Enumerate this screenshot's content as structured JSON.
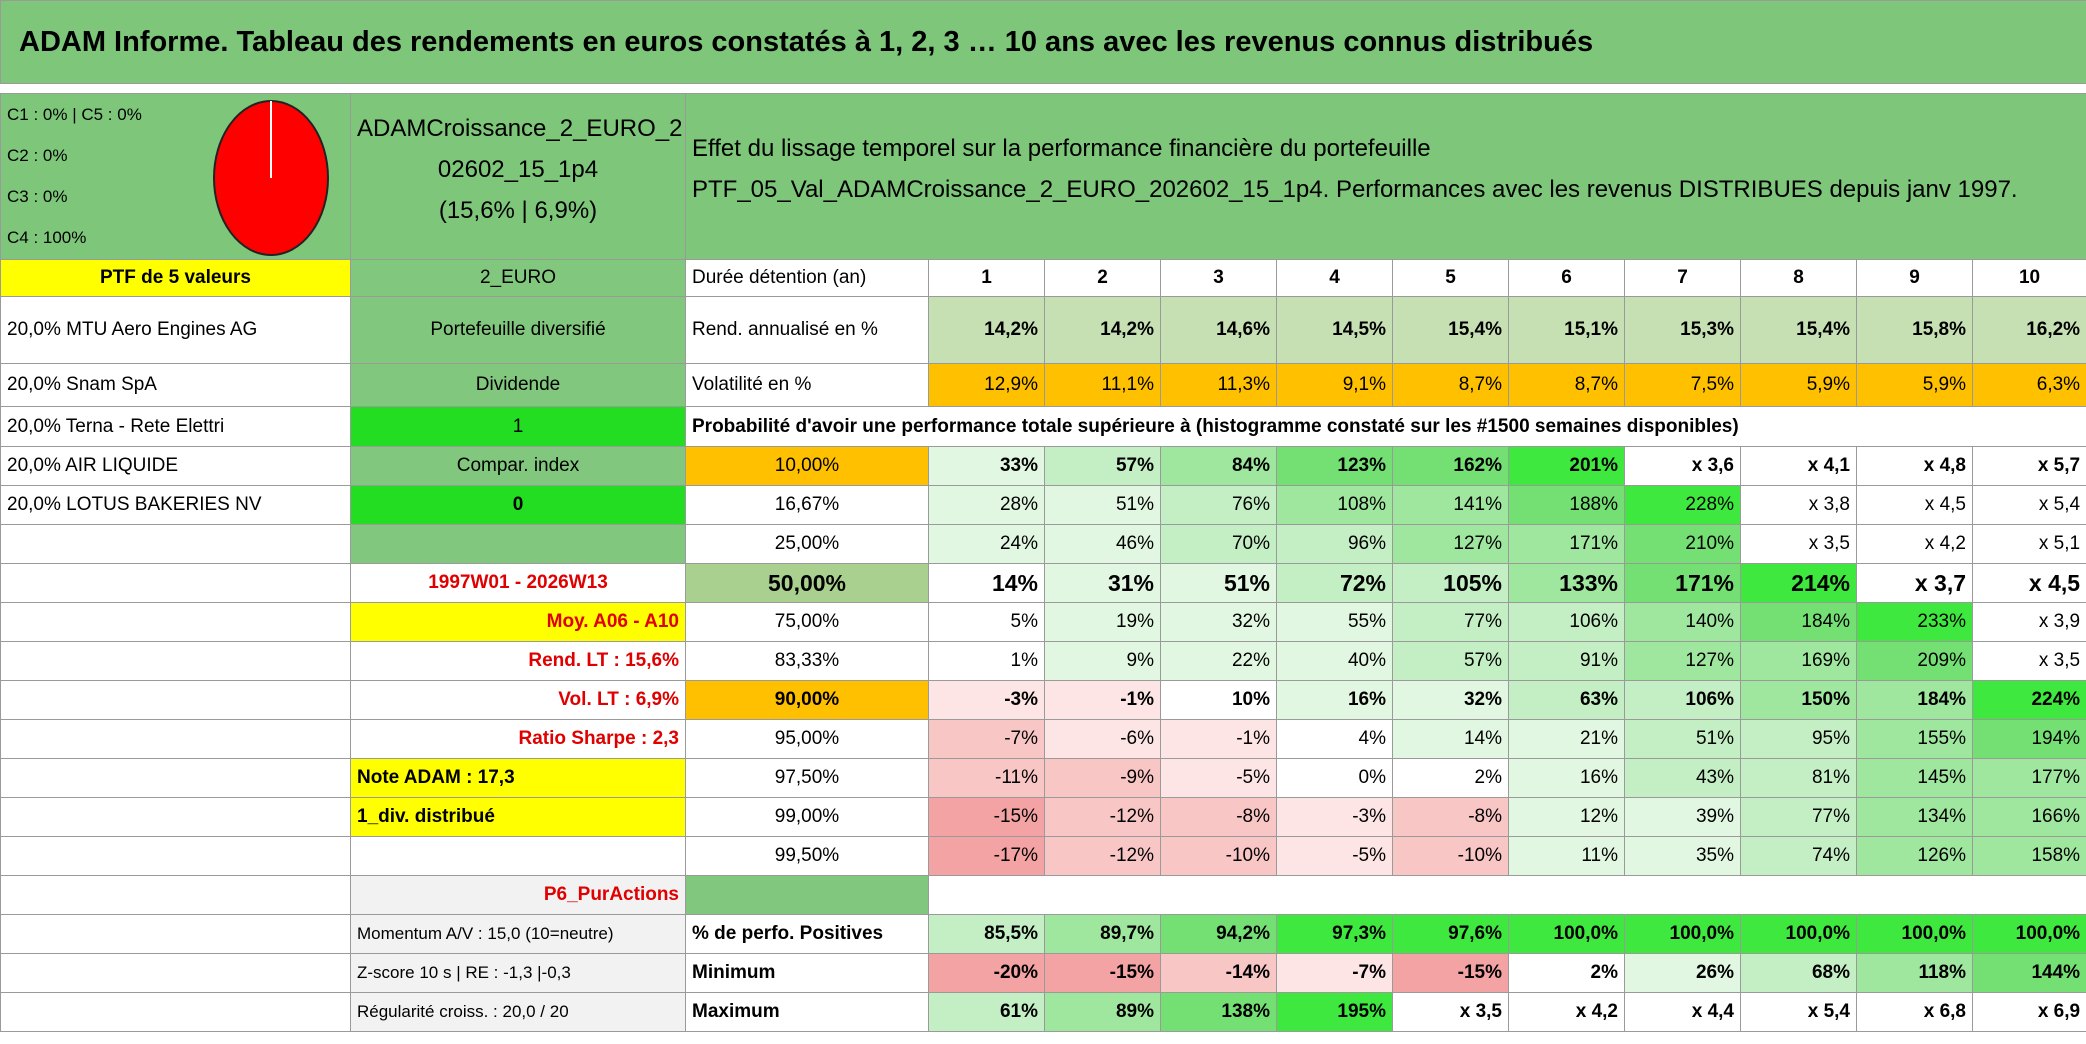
{
  "title": "ADAM Informe. Tableau des rendements en euros constatés à 1, 2, 3 … 10 ans avec les revenus connus distribués",
  "header": {
    "weights": [
      "C1 : 0% | C5 : 0%",
      "C2 : 0%",
      "C3 : 0%",
      "C4 : 100%"
    ],
    "fund": [
      "ADAMCroissance_2_EURO_2",
      "02602_15_1p4",
      "(15,6% | 6,9%)"
    ],
    "description": [
      "Effet du lissage temporel sur la performance financière du portefeuille",
      "PTF_05_Val_ADAMCroissance_2_EURO_202602_15_1p4. Performances avec les revenus DISTRIBUES depuis janv 1997."
    ]
  },
  "rows": [
    [
      "PTF de 5 valeurs",
      "2_EURO",
      "Durée détention (an)",
      "1",
      "2",
      "3",
      "4",
      "5",
      "6",
      "7",
      "8",
      "9",
      "10"
    ],
    [
      "20,0% MTU Aero Engines AG",
      "Portefeuille diversifié",
      "Rend. annualisé en %",
      "14,2%",
      "14,2%",
      "14,6%",
      "14,5%",
      "15,4%",
      "15,1%",
      "15,3%",
      "15,4%",
      "15,8%",
      "16,2%"
    ],
    [
      "20,0% Snam SpA",
      "Dividende",
      "Volatilité en %",
      "12,9%",
      "11,1%",
      "11,3%",
      "9,1%",
      "8,7%",
      "8,7%",
      "7,5%",
      "5,9%",
      "5,9%",
      "6,3%"
    ],
    [
      "20,0% Terna - Rete Elettri",
      "1",
      "Probabilité d'avoir une performance totale supérieure à (histogramme constaté sur les #1500 semaines disponibles)"
    ],
    [
      "20,0% AIR LIQUIDE",
      "Compar. index",
      "10,00%",
      "33%",
      "57%",
      "84%",
      "123%",
      "162%",
      "201%",
      "x 3,6",
      "x 4,1",
      "x 4,8",
      "x 5,7"
    ],
    [
      "20,0% LOTUS BAKERIES NV",
      "0",
      "16,67%",
      "28%",
      "51%",
      "76%",
      "108%",
      "141%",
      "188%",
      "228%",
      "x 3,8",
      "x 4,5",
      "x 5,4"
    ],
    [
      null,
      null,
      "25,00%",
      "24%",
      "46%",
      "70%",
      "96%",
      "127%",
      "171%",
      "210%",
      "x 3,5",
      "x 4,2",
      "x 5,1"
    ],
    [
      null,
      "1997W01 - 2026W13",
      "50,00%",
      "14%",
      "31%",
      "51%",
      "72%",
      "105%",
      "133%",
      "171%",
      "214%",
      "x 3,7",
      "x 4,5"
    ],
    [
      null,
      "Moy. A06 - A10",
      "75,00%",
      "5%",
      "19%",
      "32%",
      "55%",
      "77%",
      "106%",
      "140%",
      "184%",
      "233%",
      "x 3,9"
    ],
    [
      null,
      "Rend. LT : 15,6%",
      "83,33%",
      "1%",
      "9%",
      "22%",
      "40%",
      "57%",
      "91%",
      "127%",
      "169%",
      "209%",
      "x 3,5"
    ],
    [
      null,
      "Vol. LT : 6,9%",
      "90,00%",
      "-3%",
      "-1%",
      "10%",
      "16%",
      "32%",
      "63%",
      "106%",
      "150%",
      "184%",
      "224%"
    ],
    [
      null,
      "Ratio Sharpe : 2,3",
      "95,00%",
      "-7%",
      "-6%",
      "-1%",
      "4%",
      "14%",
      "21%",
      "51%",
      "95%",
      "155%",
      "194%"
    ],
    [
      null,
      "Note ADAM : 17,3",
      "97,50%",
      "-11%",
      "-9%",
      "-5%",
      "0%",
      "2%",
      "16%",
      "43%",
      "81%",
      "145%",
      "177%"
    ],
    [
      null,
      "1_div. distribué",
      "99,00%",
      "-15%",
      "-12%",
      "-8%",
      "-3%",
      "-8%",
      "12%",
      "39%",
      "77%",
      "134%",
      "166%"
    ],
    [
      null,
      null,
      "99,50%",
      "-17%",
      "-12%",
      "-10%",
      "-5%",
      "-10%",
      "11%",
      "35%",
      "74%",
      "126%",
      "158%"
    ],
    [
      null,
      "P6_PurActions",
      null,
      null,
      null,
      null,
      null,
      null,
      null,
      null,
      null,
      null,
      null
    ],
    [
      null,
      "Momentum A/V : 15,0 (10=neutre)",
      "% de perfo. Positives",
      "85,5%",
      "89,7%",
      "94,2%",
      "97,3%",
      "97,6%",
      "100,0%",
      "100,0%",
      "100,0%",
      "100,0%",
      "100,0%"
    ],
    [
      null,
      "Z-score 10 s | RE : -1,3 |-0,3",
      "Minimum",
      "-20%",
      "-15%",
      "-14%",
      "-7%",
      "-15%",
      "2%",
      "26%",
      "68%",
      "118%",
      "144%"
    ],
    [
      null,
      "Régularité croiss. : 20,0 / 20",
      "Maximum",
      "61%",
      "89%",
      "138%",
      "195%",
      "x 3,5",
      "x 4,2",
      "x 4,4",
      "x 5,4",
      "x 6,8",
      "x 6,9"
    ]
  ]
}
